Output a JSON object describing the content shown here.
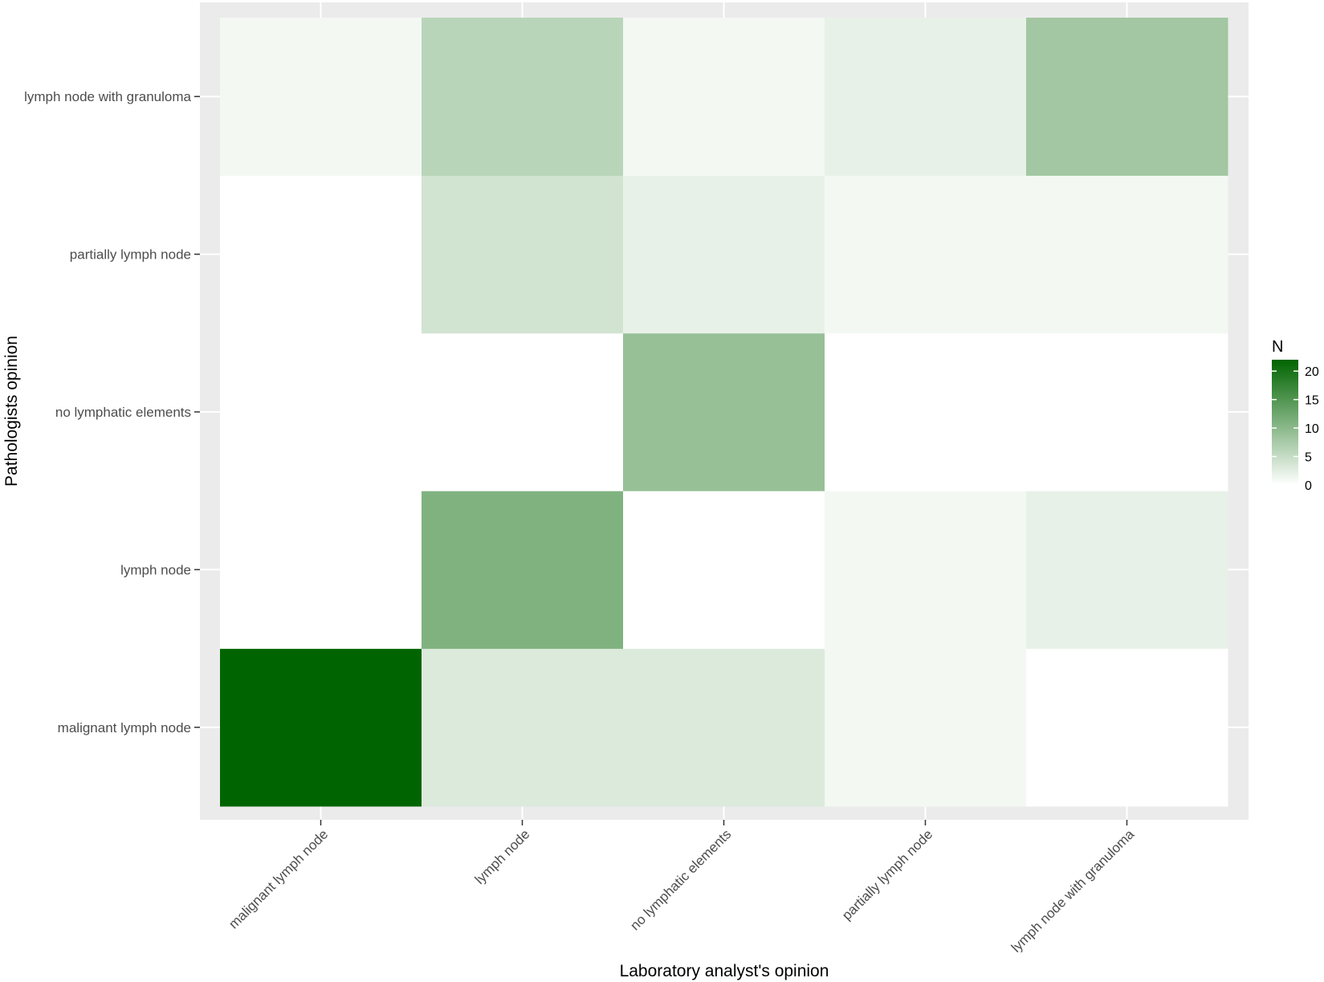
{
  "chart_data": {
    "type": "heatmap",
    "xlabel": "Laboratory analyst's opinion",
    "ylabel": "Pathologists opinion",
    "x_categories": [
      "malignant lymph node",
      "lymph node",
      "no lymphatic elements",
      "partially lymph node",
      "lymph node with granuloma"
    ],
    "y_categories": [
      "malignant lymph node",
      "lymph node",
      "no lymphatic elements",
      "partially lymph node",
      "lymph node with granuloma"
    ],
    "values": [
      [
        22,
        3,
        3,
        1,
        0
      ],
      [
        0,
        11,
        0,
        1,
        2
      ],
      [
        0,
        0,
        9,
        0,
        0
      ],
      [
        0,
        4,
        2,
        1,
        1
      ],
      [
        1,
        6,
        1,
        2,
        8
      ]
    ],
    "legend": {
      "title": "N",
      "ticks": [
        0,
        5,
        10,
        15,
        20
      ],
      "range": [
        0,
        22
      ],
      "low_color": "#ffffff",
      "high_color": "#006400",
      "placement": "right"
    },
    "panel_background": "#ebebeb",
    "grid": true
  }
}
